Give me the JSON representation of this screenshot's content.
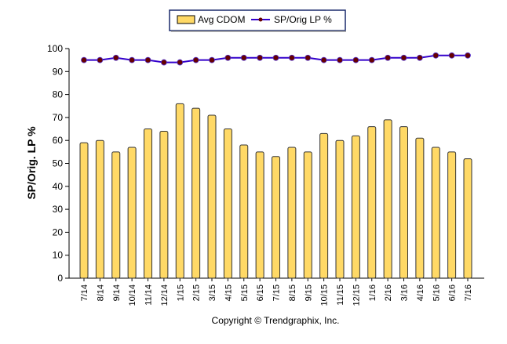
{
  "chart_data": {
    "type": "bar",
    "categories": [
      "7/14",
      "8/14",
      "9/14",
      "10/14",
      "11/14",
      "12/14",
      "1/15",
      "2/15",
      "3/15",
      "4/15",
      "5/15",
      "6/15",
      "7/15",
      "8/15",
      "9/15",
      "10/15",
      "11/15",
      "12/15",
      "1/16",
      "2/16",
      "3/16",
      "4/16",
      "5/16",
      "6/16",
      "7/16"
    ],
    "series": [
      {
        "name": "Avg CDOM",
        "type": "bar",
        "color": "#FFD966",
        "values": [
          59,
          60,
          55,
          57,
          65,
          64,
          76,
          74,
          71,
          65,
          58,
          55,
          53,
          57,
          55,
          63,
          60,
          62,
          66,
          69,
          66,
          61,
          57,
          55,
          52
        ]
      },
      {
        "name": "SP/Orig LP %",
        "type": "line",
        "color": "#3300CC",
        "marker_color": "#660000",
        "values": [
          95,
          95,
          96,
          95,
          95,
          94,
          94,
          95,
          95,
          96,
          96,
          96,
          96,
          96,
          96,
          95,
          95,
          95,
          95,
          96,
          96,
          96,
          97,
          97,
          97
        ]
      }
    ],
    "ylabel": "SP/Orig. LP %",
    "xlabel": "",
    "ylim": [
      0,
      100
    ],
    "yticks": [
      0,
      10,
      20,
      30,
      40,
      50,
      60,
      70,
      80,
      90,
      100
    ],
    "grid": false,
    "legend": "top-center"
  },
  "footer": "Copyright © Trendgraphix, Inc."
}
